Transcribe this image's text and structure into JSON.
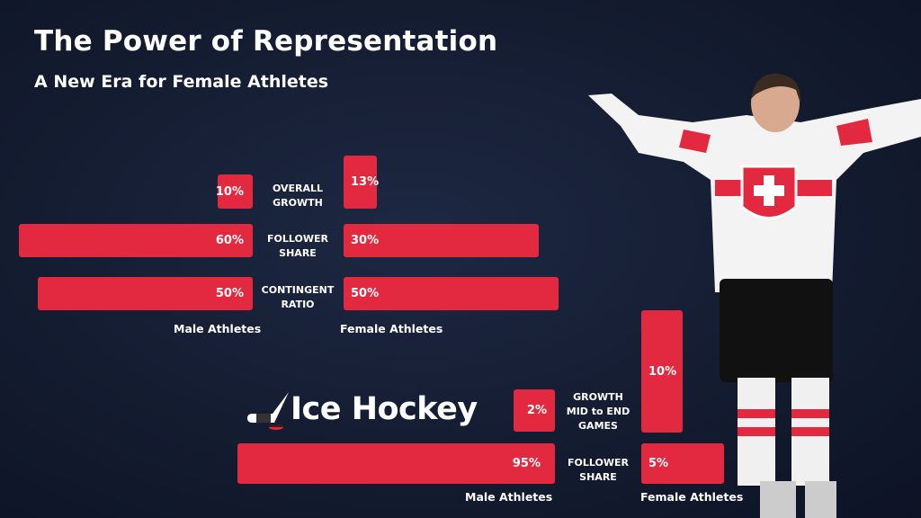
{
  "header": {
    "title": "The Power of Representation",
    "subtitle": "A New Era for Female Athletes"
  },
  "colors": {
    "bar": "#e3293f",
    "background": "#141c31",
    "text": "#ffffff"
  },
  "chart_data": [
    {
      "type": "bar",
      "orientation": "diverging-horizontal",
      "categories": [
        "OVERALL GROWTH",
        "FOLLOWER SHARE",
        "CONTINGENT RATIO"
      ],
      "series": [
        {
          "name": "Male Athletes",
          "values": [
            10,
            60,
            50
          ],
          "labels": [
            "10%",
            "60%",
            "50%"
          ]
        },
        {
          "name": "Female Athletes",
          "values": [
            13,
            30,
            50
          ],
          "labels": [
            "13%",
            "30%",
            "50%"
          ]
        }
      ]
    },
    {
      "type": "bar",
      "orientation": "diverging-horizontal",
      "title": "Ice Hockey",
      "categories": [
        "GROWTH MID to END GAMES",
        "FOLLOWER SHARE"
      ],
      "series": [
        {
          "name": "Male Athletes",
          "values": [
            2,
            95
          ],
          "labels": [
            "2%",
            "95%"
          ]
        },
        {
          "name": "Female Athletes",
          "values": [
            10,
            5
          ],
          "labels": [
            "10%",
            "5%"
          ]
        }
      ]
    }
  ],
  "cats1": [
    "OVERALL\nGROWTH",
    "FOLLOWER\nSHARE",
    "CONTINGENT\nRATIO"
  ],
  "cats2": [
    "GROWTH\nMID to END\nGAMES",
    "FOLLOWER\nSHARE"
  ],
  "logo_icon": "hockey-stick-puck-icon",
  "photo": "swiss-hockey-player-celebrating"
}
